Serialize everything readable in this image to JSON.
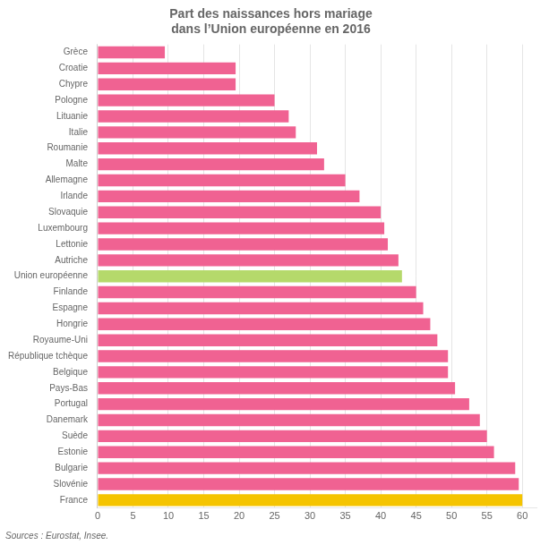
{
  "chart_data": {
    "type": "bar",
    "orientation": "horizontal",
    "title": "Part des naissances hors mariage\ndans l’Union européenne en 2016",
    "annotations": [
      "Sources : Eurostat, Insee."
    ],
    "categories": [
      "Grèce",
      "Croatie",
      "Chypre",
      "Pologne",
      "Lituanie",
      "Italie",
      "Roumanie",
      "Malte",
      "Allemagne",
      "Irlande",
      "Slovaquie",
      "Luxembourg",
      "Lettonie",
      "Autriche",
      "Union européenne",
      "Finlande",
      "Espagne",
      "Hongrie",
      "Royaume-Uni",
      "République tchèque",
      "Belgique",
      "Pays-Bas",
      "Portugal",
      "Danemark",
      "Suède",
      "Estonie",
      "Bulgarie",
      "Slovénie",
      "France"
    ],
    "values": [
      9.5,
      19.5,
      19.5,
      25.0,
      27.0,
      28.0,
      31.0,
      32.0,
      35.0,
      37.0,
      40.0,
      40.5,
      41.0,
      42.5,
      43.0,
      45.0,
      46.0,
      47.0,
      48.0,
      49.5,
      49.5,
      50.5,
      52.5,
      54.0,
      55.0,
      56.0,
      59.0,
      59.5,
      60.0
    ],
    "colors": [
      "#f06292",
      "#f06292",
      "#f06292",
      "#f06292",
      "#f06292",
      "#f06292",
      "#f06292",
      "#f06292",
      "#f06292",
      "#f06292",
      "#f06292",
      "#f06292",
      "#f06292",
      "#f06292",
      "#b5d96b",
      "#f06292",
      "#f06292",
      "#f06292",
      "#f06292",
      "#f06292",
      "#f06292",
      "#f06292",
      "#f06292",
      "#f06292",
      "#f06292",
      "#f06292",
      "#f06292",
      "#f06292",
      "#f5c400"
    ],
    "xlim": [
      0,
      62
    ],
    "xticks": [
      0,
      5,
      10,
      15,
      20,
      25,
      30,
      35,
      40,
      45,
      50,
      55,
      60
    ],
    "grid": true
  }
}
